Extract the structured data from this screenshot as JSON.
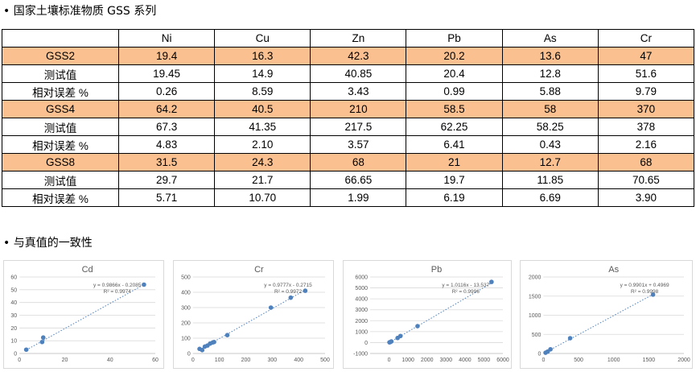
{
  "section1": {
    "title": "• 国家土壤标准物质 GSS 系列"
  },
  "section2": {
    "title": "• 与真值的一致性"
  },
  "table": {
    "columns": [
      "",
      "Ni",
      "Cu",
      "Zn",
      "Pb",
      "As",
      "Cr"
    ],
    "rows": [
      {
        "highlight": true,
        "cells": [
          "GSS2",
          "19.4",
          "16.3",
          "42.3",
          "20.2",
          "13.6",
          "47"
        ]
      },
      {
        "highlight": false,
        "cells": [
          "测试值",
          "19.45",
          "14.9",
          "40.85",
          "20.4",
          "12.8",
          "51.6"
        ]
      },
      {
        "highlight": false,
        "cells": [
          "相对误差 %",
          "0.26",
          "8.59",
          "3.43",
          "0.99",
          "5.88",
          "9.79"
        ]
      },
      {
        "highlight": true,
        "cells": [
          "GSS4",
          "64.2",
          "40.5",
          "210",
          "58.5",
          "58",
          "370"
        ]
      },
      {
        "highlight": false,
        "cells": [
          "测试值",
          "67.3",
          "41.35",
          "217.5",
          "62.25",
          "58.25",
          "378"
        ]
      },
      {
        "highlight": false,
        "cells": [
          "相对误差 %",
          "4.83",
          "2.10",
          "3.57",
          "6.41",
          "0.43",
          "2.16"
        ]
      },
      {
        "highlight": true,
        "cells": [
          "GSS8",
          "31.5",
          "24.3",
          "68",
          "21",
          "12.7",
          "68"
        ]
      },
      {
        "highlight": false,
        "cells": [
          "测试值",
          "29.7",
          "21.7",
          "66.65",
          "19.7",
          "11.85",
          "70.65"
        ]
      },
      {
        "highlight": false,
        "cells": [
          "相对误差 %",
          "5.71",
          "10.70",
          "1.99",
          "6.19",
          "6.69",
          "3.90"
        ]
      }
    ]
  },
  "colors": {
    "highlight_row": "#fac090",
    "marker": "#4f81bd",
    "grid": "#d9d9d9",
    "axis_text": "#595959"
  },
  "chart_data": [
    {
      "type": "scatter",
      "title": "Cd",
      "equation": "y = 0.9866x - 0.2085",
      "r2": "R² = 0.9974",
      "xlim": [
        0,
        60
      ],
      "ylim": [
        0,
        60
      ],
      "xticks": [
        0,
        20,
        40,
        60
      ],
      "yticks": [
        0,
        10,
        20,
        30,
        40,
        50,
        60
      ],
      "points": [
        [
          3,
          3
        ],
        [
          10,
          9
        ],
        [
          10.5,
          12.5
        ],
        [
          55,
          54
        ]
      ],
      "trend": {
        "slope": 0.9866,
        "intercept": -0.2085
      }
    },
    {
      "type": "scatter",
      "title": "Cr",
      "equation": "y = 0.9777x - 0.2715",
      "r2": "R² = 0.9972",
      "xlim": [
        0,
        500
      ],
      "ylim": [
        0,
        500
      ],
      "xticks": [
        0,
        100,
        200,
        300,
        400,
        500
      ],
      "yticks": [
        0,
        100,
        200,
        300,
        400,
        500
      ],
      "points": [
        [
          25,
          30
        ],
        [
          35,
          22
        ],
        [
          45,
          45
        ],
        [
          55,
          52
        ],
        [
          65,
          65
        ],
        [
          75,
          72
        ],
        [
          80,
          75
        ],
        [
          130,
          120
        ],
        [
          295,
          300
        ],
        [
          370,
          365
        ],
        [
          425,
          410
        ]
      ],
      "trend": {
        "slope": 0.9777,
        "intercept": -0.2715
      }
    },
    {
      "type": "scatter",
      "title": "Pb",
      "equation": "y = 1.0116x - 13.537",
      "r2": "R² = 0.9996",
      "xlim": [
        -1000,
        6000
      ],
      "ylim": [
        -1000,
        6000
      ],
      "xticks": [
        0,
        1000,
        2000,
        3000,
        4000,
        5000,
        6000
      ],
      "yticks": [
        -1000,
        0,
        1000,
        2000,
        3000,
        4000,
        5000,
        6000
      ],
      "points": [
        [
          20,
          20
        ],
        [
          60,
          40
        ],
        [
          120,
          100
        ],
        [
          450,
          420
        ],
        [
          600,
          600
        ],
        [
          1500,
          1500
        ],
        [
          5400,
          5550
        ]
      ],
      "trend": {
        "slope": 1.0116,
        "intercept": -13.537
      }
    },
    {
      "type": "scatter",
      "title": "As",
      "equation": "y = 0.9901x + 0.4969",
      "r2": "R² = 0.9998",
      "xlim": [
        0,
        2000
      ],
      "ylim": [
        0,
        2000
      ],
      "xticks": [
        0,
        500,
        1000,
        1500,
        2000
      ],
      "yticks": [
        0,
        500,
        1000,
        1500,
        2000
      ],
      "points": [
        [
          30,
          20
        ],
        [
          60,
          50
        ],
        [
          100,
          110
        ],
        [
          380,
          400
        ],
        [
          1560,
          1540
        ]
      ],
      "trend": {
        "slope": 0.9901,
        "intercept": 0.4969
      }
    }
  ]
}
